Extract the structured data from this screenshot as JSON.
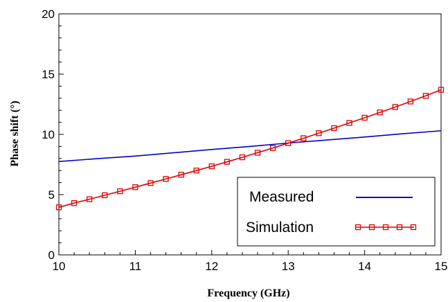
{
  "chart_data": {
    "type": "line",
    "title": "",
    "xlabel": "Frequency (GHz)",
    "ylabel": "Phase shift (°)",
    "xlim": [
      10,
      15
    ],
    "ylim": [
      0,
      20
    ],
    "xticks": [
      "10",
      "11",
      "12",
      "13",
      "14",
      "15"
    ],
    "yticks": [
      "0",
      "5",
      "10",
      "15",
      "20"
    ],
    "grid": false,
    "legend_position": "bottom-right",
    "series": [
      {
        "name": "Measured",
        "color": "#0000cc",
        "marker": "none",
        "x": [
          10,
          10.5,
          11,
          11.5,
          12,
          12.5,
          13,
          13.5,
          14,
          14.5,
          15
        ],
        "y": [
          7.75,
          7.98,
          8.2,
          8.47,
          8.75,
          9.0,
          9.28,
          9.53,
          9.78,
          10.05,
          10.3
        ]
      },
      {
        "name": "Simulation",
        "color": "#dd0000",
        "marker": "square",
        "x": [
          10,
          10.2,
          10.4,
          10.6,
          10.8,
          11,
          11.2,
          11.4,
          11.6,
          11.8,
          12,
          12.2,
          12.4,
          12.6,
          12.8,
          13,
          13.2,
          13.4,
          13.6,
          13.8,
          14,
          14.2,
          14.4,
          14.6,
          14.8,
          15
        ],
        "y": [
          3.95,
          4.3,
          4.62,
          4.95,
          5.28,
          5.62,
          5.96,
          6.3,
          6.65,
          7.0,
          7.35,
          7.72,
          8.1,
          8.48,
          8.87,
          9.27,
          9.68,
          10.1,
          10.52,
          10.95,
          11.38,
          11.82,
          12.27,
          12.73,
          13.2,
          13.7
        ]
      }
    ]
  }
}
